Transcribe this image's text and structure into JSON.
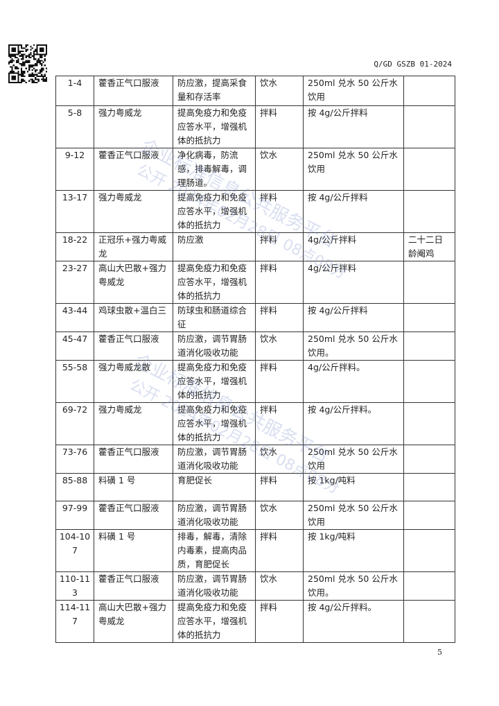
{
  "header": {
    "standard_code": "Q/GD GSZB 01-2024"
  },
  "table": {
    "rows": [
      [
        "1-4",
        "藿香正气口服液",
        "防应激，提高采食量和存活率",
        "饮水",
        "250ml 兑水 50 公斤水饮用",
        ""
      ],
      [
        "5-8",
        "强力粤威龙",
        "提高免疫力和免疫应答水平，增强机体的抵抗力",
        "拌料",
        "按 4g/公斤拌料",
        ""
      ],
      [
        "9-12",
        "藿香正气口服液",
        "净化病毒，防流感，排毒解毒，调理肠道。",
        "饮水",
        "250ml 兑水 50 公斤水饮用",
        ""
      ],
      [
        "13-17",
        "强力粤威龙",
        "提高免疫力和免疫应答水平，增强机体的抵抗力",
        "拌料",
        "按 4g/公斤拌料",
        ""
      ],
      [
        "18-22",
        "正冠乐+强力粤威龙",
        "防应激",
        "拌料",
        "4g/公斤拌料",
        "二十二日龄阉鸡"
      ],
      [
        "23-27",
        "高山大巴散+强力粤威龙",
        "提高免疫力和免疫应答水平，增强机体的抵抗力",
        "拌料",
        "4g/公斤拌料",
        ""
      ],
      [
        "43-44",
        "鸡球虫散+温白三",
        "防球虫和肠道综合征",
        "拌料",
        "按 4g/公斤拌料",
        ""
      ],
      [
        "45-47",
        "藿香正气口服液",
        "防应激，调节胃肠道消化吸收功能",
        "饮水",
        "250ml 兑水 50 公斤水饮用。",
        ""
      ],
      [
        "55-58",
        "强力粤威龙散",
        "提高免疫力和免疫应答水平，增强机体的抵抗力",
        "拌料",
        "4g/公斤拌料。",
        ""
      ],
      [
        "69-72",
        "强力粤威龙",
        "提高免疫力和免疫应答水平，增强机体的抵抗力",
        "拌料",
        "按 4g/公斤拌料。",
        ""
      ],
      [
        "73-76",
        "藿香正气口服液",
        "防应激，调节胃肠道消化吸收功能",
        "饮水",
        "250ml 兑水 50 公斤水饮用",
        ""
      ],
      [
        "85-88",
        "料磺 1 号",
        "育肥促长",
        "拌料",
        "按 1kg/吨料",
        ""
      ],
      [
        "97-99",
        "藿香正气口服液",
        "防应激，调节胃肠道消化吸收功能",
        "饮水",
        "250ml 兑水 50 公斤水饮用",
        ""
      ],
      [
        "104-107",
        "料磺 1 号",
        "排毒，解毒，清除内毒素，提高肉品质，育肥促长",
        "拌料",
        "按 1kg/吨料",
        ""
      ],
      [
        "110-113",
        "藿香正气口服液",
        "防应激，调节胃肠道消化吸收功能",
        "饮水",
        "250ml 兑水 50 公斤水饮用。",
        ""
      ],
      [
        "114-117",
        "高山大巴散+强力粤威龙",
        "提高免疫力和免疫应答水平，增强机体的抵抗力",
        "拌料",
        "按 4g/公斤拌料。",
        ""
      ]
    ]
  },
  "watermark": {
    "line1": "企业标准信息公共服务平台",
    "line2": "公开 2024年02月28日 08点08分",
    "color": "#7f8fcc"
  },
  "footer": {
    "page_number": "5"
  }
}
